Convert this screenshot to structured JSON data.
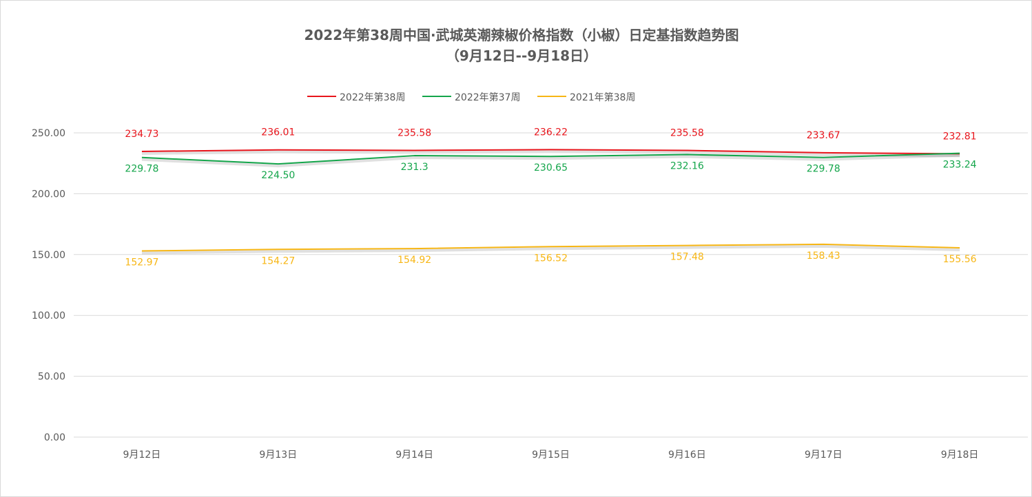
{
  "chart_data": {
    "type": "line",
    "title_line1": "2022年第38周中国·武城英潮辣椒价格指数（小椒）日定基指数趋势图",
    "title_line2": "（9月12日--9月18日）",
    "categories": [
      "9月12日",
      "9月13日",
      "9月14日",
      "9月15日",
      "9月16日",
      "9月17日",
      "9月18日"
    ],
    "y_ticks": [
      "0.00",
      "50.00",
      "100.00",
      "150.00",
      "200.00",
      "250.00"
    ],
    "ylim": [
      0,
      250
    ],
    "grid": true,
    "legend_position": "top",
    "series": [
      {
        "name": "2022年第38周",
        "color": "#e8141b",
        "values": [
          234.73,
          236.01,
          235.58,
          236.22,
          235.58,
          233.67,
          232.81
        ],
        "labels": [
          "234.73",
          "236.01",
          "235.58",
          "236.22",
          "235.58",
          "233.67",
          "232.81"
        ],
        "label_position": "above"
      },
      {
        "name": "2022年第37周",
        "color": "#13a54a",
        "values": [
          229.78,
          224.5,
          231.3,
          230.65,
          232.16,
          229.78,
          233.24
        ],
        "labels": [
          "229.78",
          "224.50",
          "231.3",
          "230.65",
          "232.16",
          "229.78",
          "233.24"
        ],
        "label_position": "below"
      },
      {
        "name": "2021年第38周",
        "color": "#f7b614",
        "values": [
          152.97,
          154.27,
          154.92,
          156.52,
          157.48,
          158.43,
          155.56
        ],
        "labels": [
          "152.97",
          "154.27",
          "154.92",
          "156.52",
          "157.48",
          "158.43",
          "155.56"
        ],
        "label_position": "below"
      }
    ]
  }
}
